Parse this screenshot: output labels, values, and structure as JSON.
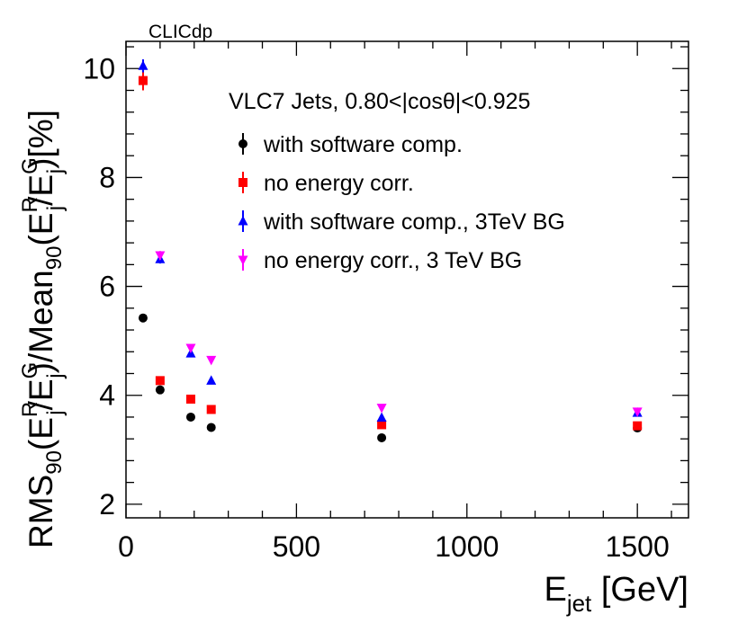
{
  "chart_data": {
    "type": "scatter",
    "watermark": "CLICdp",
    "title": "",
    "xlabel": {
      "main": "E",
      "sub": "jet",
      "unit": " [GeV]"
    },
    "ylabel": {
      "p1": "RMS",
      "p1_sub": "90",
      "p2": "(E",
      "p2_sup": "R",
      "p2_sub": "j",
      "p3": "/E",
      "p3_sup": "G",
      "p3_sub": "j",
      "p4": ")/Mean",
      "p4_sub": "90",
      "p5": "(E",
      "p5_sup": "R",
      "p5_sub": "j",
      "p6": "/E",
      "p6_sup": "G",
      "p6_sub": "j",
      "p7": ")[%]"
    },
    "legend_header": "VLC7 Jets, 0.80<|cosθ|<0.925",
    "legend_position": "top-right",
    "xlim": [
      0,
      1650
    ],
    "ylim": [
      1.75,
      10.5
    ],
    "xticks": [
      0,
      500,
      1000,
      1500
    ],
    "yticks": [
      2,
      4,
      6,
      8,
      10
    ],
    "xtick_labels": [
      "0",
      "500",
      "1000",
      "1500"
    ],
    "ytick_labels": [
      "2",
      "4",
      "6",
      "8",
      "10"
    ],
    "series": [
      {
        "name": "with software comp.",
        "marker": "circle",
        "color": "#000000",
        "points": [
          {
            "x": 50,
            "y": 5.42,
            "err": 0.04
          },
          {
            "x": 100,
            "y": 4.1,
            "err": 0.03
          },
          {
            "x": 190,
            "y": 3.6,
            "err": 0.03
          },
          {
            "x": 250,
            "y": 3.41,
            "err": 0.03
          },
          {
            "x": 750,
            "y": 3.22,
            "err": 0.03
          },
          {
            "x": 1500,
            "y": 3.4,
            "err": 0.03
          }
        ]
      },
      {
        "name": "no energy corr.",
        "marker": "square",
        "color": "#ff0000",
        "points": [
          {
            "x": 50,
            "y": 9.78,
            "err": 0.18
          },
          {
            "x": 100,
            "y": 4.27,
            "err": 0.04
          },
          {
            "x": 190,
            "y": 3.93,
            "err": 0.03
          },
          {
            "x": 250,
            "y": 3.74,
            "err": 0.03
          },
          {
            "x": 750,
            "y": 3.46,
            "err": 0.03
          },
          {
            "x": 1500,
            "y": 3.44,
            "err": 0.03
          }
        ]
      },
      {
        "name": "with software comp., 3TeV BG",
        "marker": "triangle-up",
        "color": "#0000ff",
        "points": [
          {
            "x": 50,
            "y": 10.05,
            "err": 0.12
          },
          {
            "x": 100,
            "y": 6.5,
            "err": 0.08
          },
          {
            "x": 190,
            "y": 4.77,
            "err": 0.05
          },
          {
            "x": 250,
            "y": 4.27,
            "err": 0.04
          },
          {
            "x": 750,
            "y": 3.59,
            "err": 0.04
          },
          {
            "x": 1500,
            "y": 3.68,
            "err": 0.04
          }
        ]
      },
      {
        "name": "no energy corr., 3 TeV BG",
        "marker": "triangle-down",
        "color": "#ff00ff",
        "points": [
          {
            "x": 100,
            "y": 6.57,
            "err": 0.08
          },
          {
            "x": 190,
            "y": 4.87,
            "err": 0.05
          },
          {
            "x": 250,
            "y": 4.65,
            "err": 0.04
          },
          {
            "x": 750,
            "y": 3.77,
            "err": 0.04
          },
          {
            "x": 1500,
            "y": 3.7,
            "err": 0.04
          }
        ]
      }
    ]
  }
}
